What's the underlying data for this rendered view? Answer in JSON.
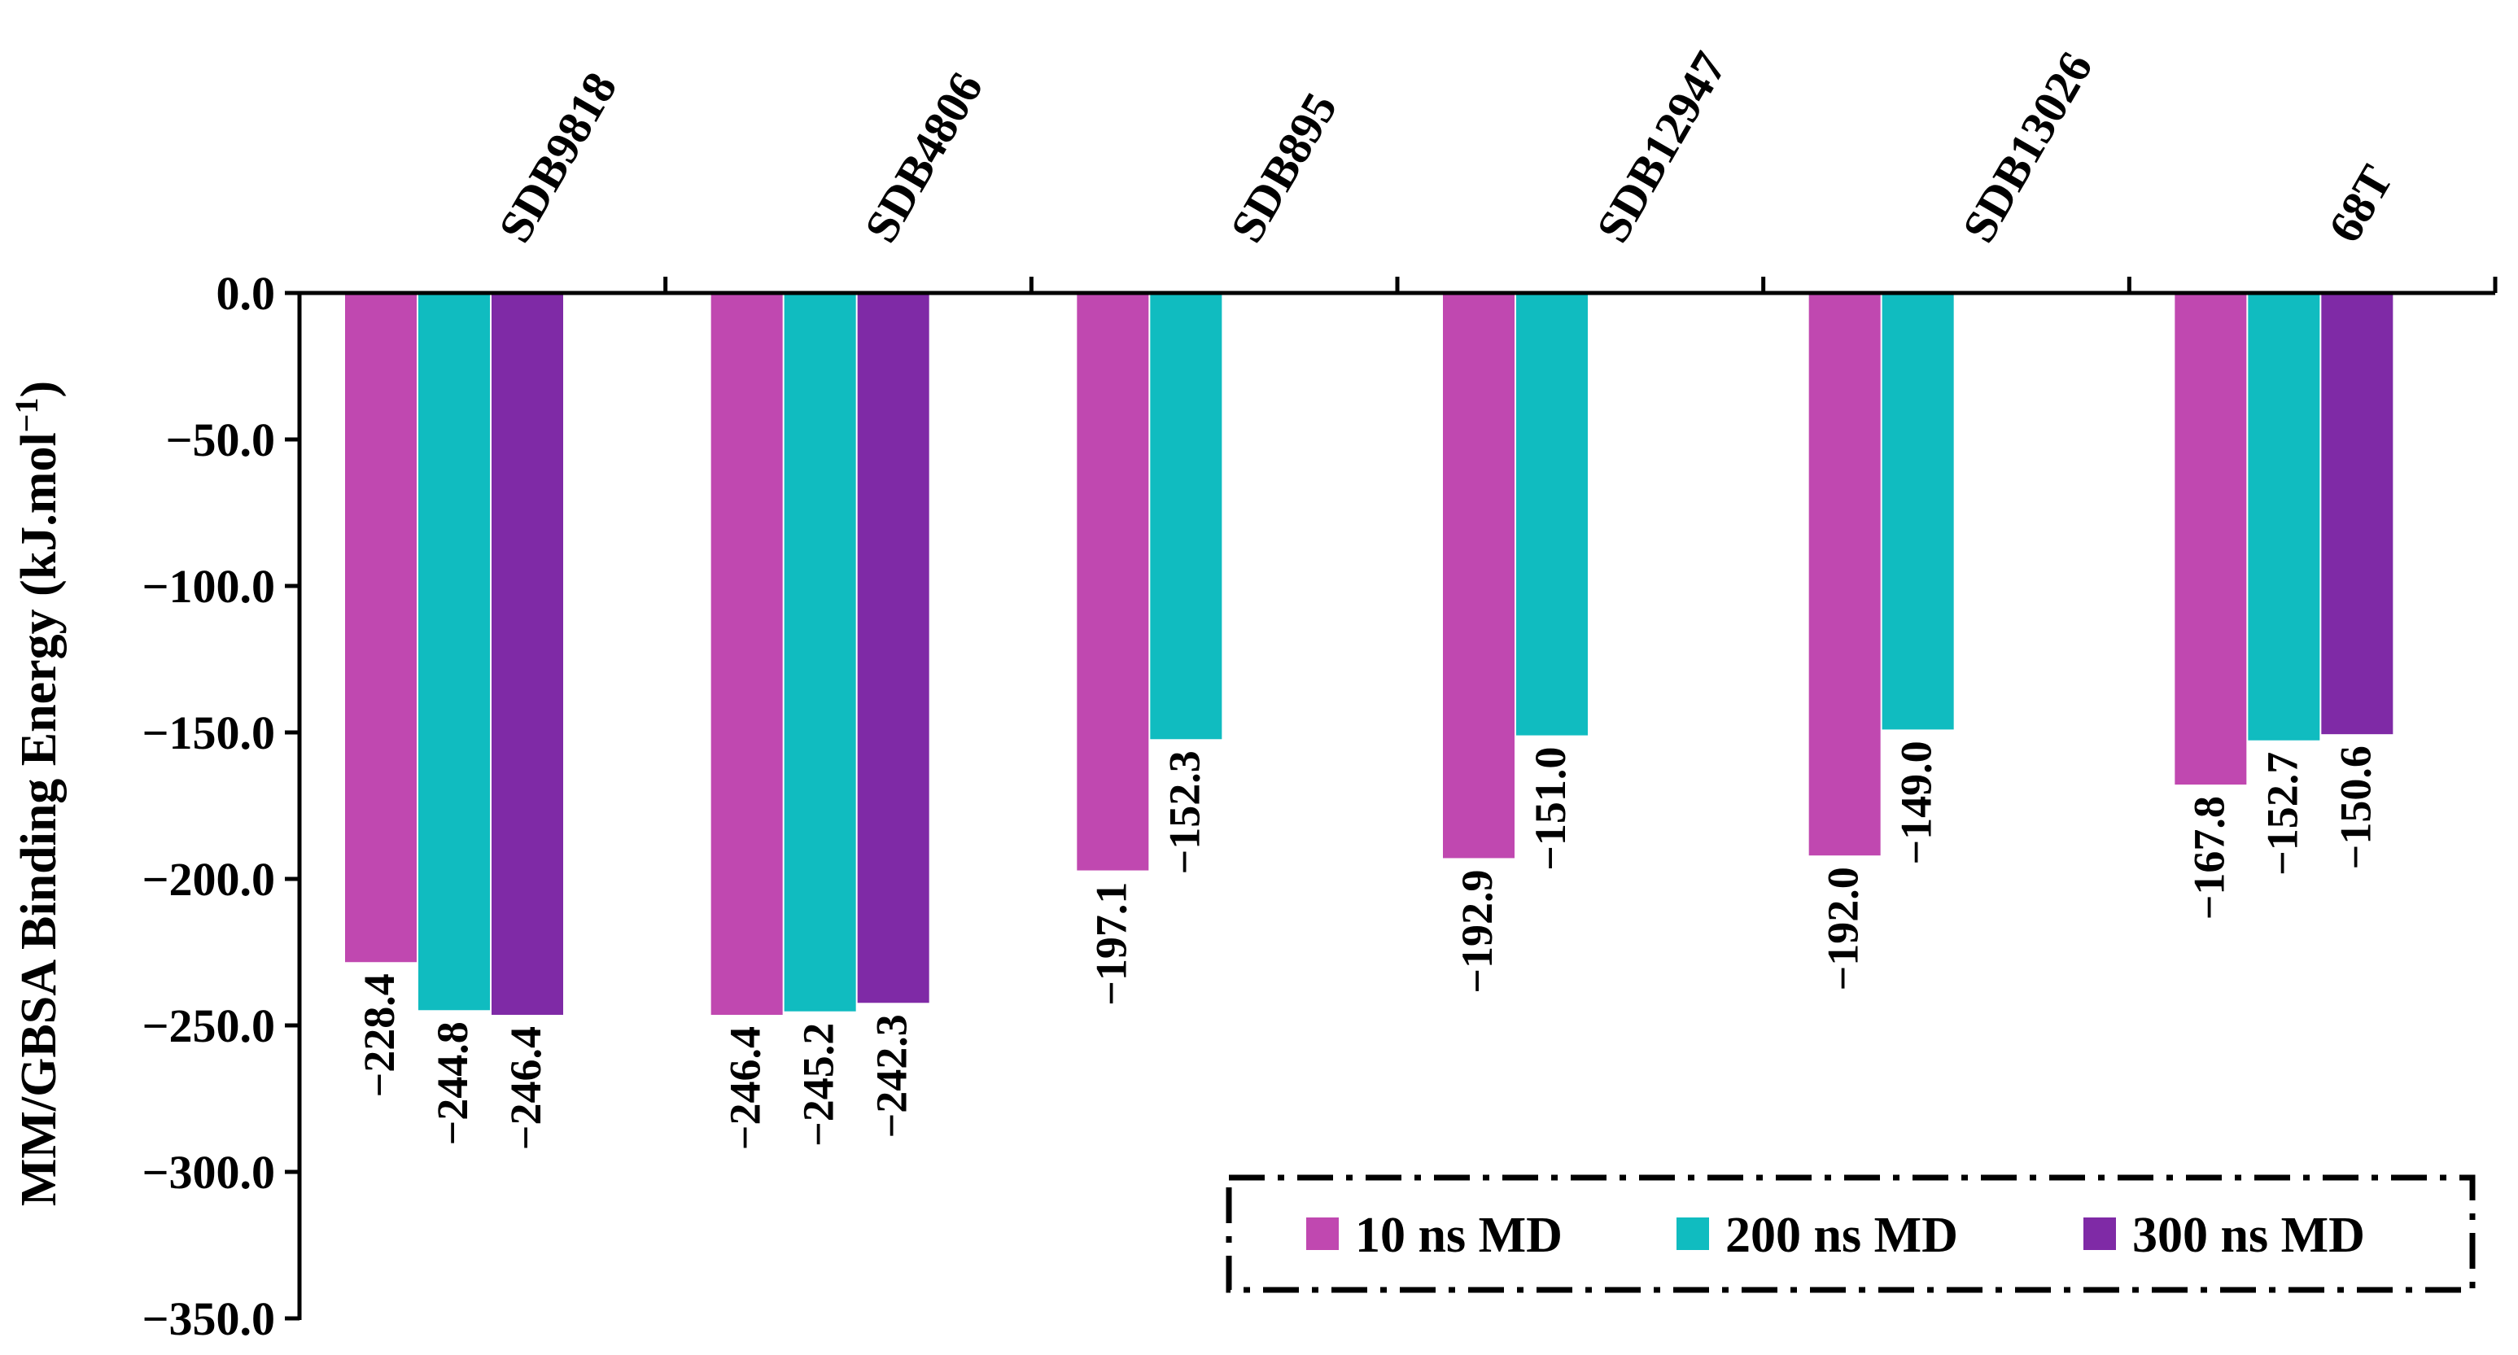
{
  "chart_data": {
    "type": "bar",
    "title": "",
    "xlabel": "",
    "ylabel": "MM/GBSA Binding Energy (kJ.mol",
    "ylabel_superscript": "−1",
    "ylabel_close": ")",
    "ylim": [
      -350,
      0
    ],
    "y_ticks": [
      {
        "value": 0,
        "label": "0.0"
      },
      {
        "value": -50,
        "label": "−50.0"
      },
      {
        "value": -100,
        "label": "−100.0"
      },
      {
        "value": -150,
        "label": "−150.0"
      },
      {
        "value": -200,
        "label": "−200.0"
      },
      {
        "value": -250,
        "label": "−250.0"
      },
      {
        "value": -300,
        "label": "−300.0"
      },
      {
        "value": -350,
        "label": "−350.0"
      }
    ],
    "categories": [
      "SDB9818",
      "SDB4806",
      "SDB895",
      "SDB12947",
      "SDB13026",
      "68T"
    ],
    "series": [
      {
        "name": "10 ns MD",
        "color": "#C048B0",
        "values": [
          -228.4,
          -246.4,
          -197.1,
          -192.9,
          -192.0,
          -167.8
        ],
        "labels": [
          "−228.4",
          "−246.4",
          "−197.1",
          "−192.9",
          "−192.0",
          "−167.8"
        ]
      },
      {
        "name": "200 ns MD",
        "color": "#10BCC0",
        "values": [
          -244.8,
          -245.2,
          -152.3,
          -151.0,
          -149.0,
          -152.7
        ],
        "labels": [
          "−244.8",
          "−245.2",
          "−152.3",
          "−151.0",
          "−149.0",
          "−152.7"
        ]
      },
      {
        "name": "300 ns MD",
        "color": "#7F2AA6",
        "values": [
          -246.4,
          -242.3,
          null,
          null,
          null,
          -150.6
        ],
        "labels": [
          "−246.4",
          "−242.3",
          null,
          null,
          null,
          "−150.6"
        ]
      }
    ],
    "legend": {
      "position": "bottom-right",
      "border": "dash-dot"
    },
    "grid": false
  }
}
